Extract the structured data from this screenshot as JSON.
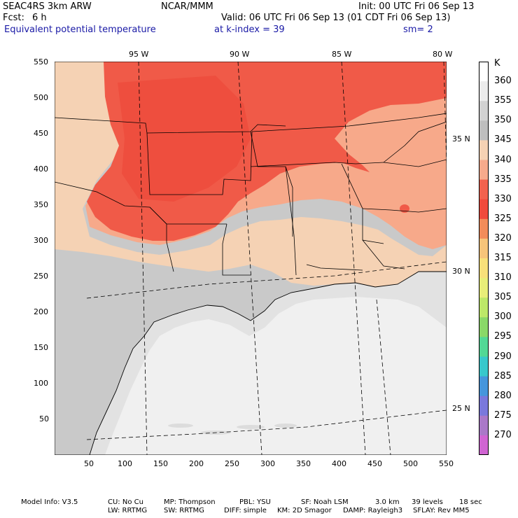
{
  "header": {
    "model": "SEAC4RS  3km ARW",
    "org": "NCAR/MMM",
    "init": "Init: 00 UTC Fri 06 Sep 13",
    "fcst_label": "Fcst:",
    "fcst_value": "6 h",
    "valid": "Valid: 06 UTC Fri 06 Sep 13 (01 CDT Fri 06 Sep 13)",
    "field": "Equivalent potential temperature",
    "kindex": "at k-index =  39",
    "smooth": "sm= 2"
  },
  "axes": {
    "x_ticks": [
      "50",
      "100",
      "150",
      "200",
      "250",
      "300",
      "350",
      "400",
      "450",
      "500",
      "550"
    ],
    "y_ticks": [
      "550",
      "500",
      "450",
      "400",
      "350",
      "300",
      "250",
      "200",
      "150",
      "100",
      "50"
    ],
    "lon_labels": [
      "95 W",
      "90 W",
      "85 W",
      "80 W"
    ],
    "lat_labels": [
      "35 N",
      "30 N",
      "25 N"
    ]
  },
  "colorbar": {
    "unit": "K",
    "levels": [
      "360",
      "355",
      "350",
      "345",
      "340",
      "335",
      "330",
      "325",
      "320",
      "315",
      "310",
      "305",
      "300",
      "295",
      "290",
      "285",
      "280",
      "275",
      "270"
    ],
    "colors": [
      "#ffffff",
      "#ececec",
      "#d2d2d2",
      "#bebebe",
      "#f5d2b4",
      "#f7aa8c",
      "#f2624e",
      "#f04a3c",
      "#f28c5a",
      "#f7c47a",
      "#f8e07a",
      "#e8ee78",
      "#bde868",
      "#8ad868",
      "#52d896",
      "#38c8cc",
      "#4696dc",
      "#7a78dc",
      "#aa78c8",
      "#d064d2"
    ]
  },
  "map": {
    "colors": {
      "ocean": "#f0f0f0",
      "light": "#e2e2e2",
      "gray": "#c9c9c9",
      "peach": "#f5d2b4",
      "salmon": "#f7a98a",
      "red": "#f05a48",
      "redDark": "#ee4e3e"
    }
  },
  "footer": {
    "line1": [
      "Model Info: V3.5",
      "CU: No Cu",
      "MP: Thompson",
      "PBL: YSU",
      "SF: Noah LSM",
      "3.0 km",
      "39 levels",
      "18 sec"
    ],
    "line2": [
      "LW: RRTMG",
      "SW: RRTMG",
      "DIFF: simple",
      "KM: 2D Smagor",
      "DAMP: Rayleigh3",
      "SFLAY: Rev MM5"
    ]
  }
}
